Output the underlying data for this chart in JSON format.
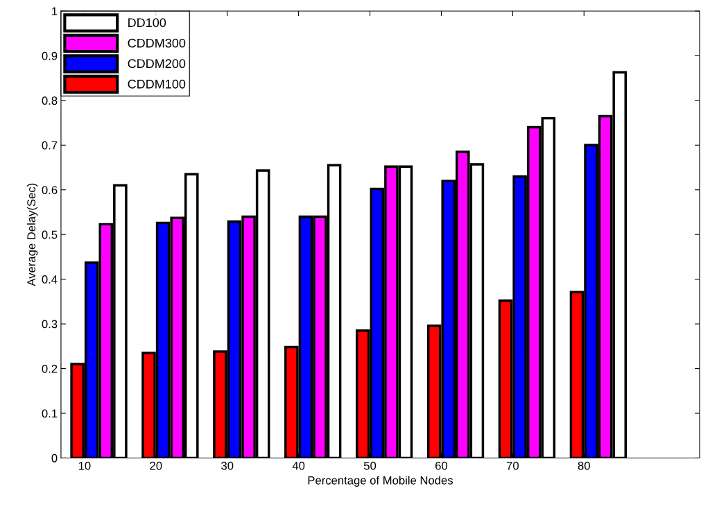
{
  "chart_data": {
    "type": "bar",
    "xlabel": "Percentage of Mobile Nodes",
    "ylabel": "Average Delay(Sec)",
    "x": [
      10,
      20,
      30,
      40,
      50,
      60,
      70,
      80
    ],
    "series": [
      {
        "name": "CDDM100",
        "color": "#ff0000",
        "values": [
          0.21,
          0.235,
          0.238,
          0.248,
          0.285,
          0.296,
          0.352,
          0.371
        ]
      },
      {
        "name": "CDDM200",
        "color": "#0000ff",
        "values": [
          0.437,
          0.526,
          0.529,
          0.54,
          0.602,
          0.62,
          0.63,
          0.7
        ]
      },
      {
        "name": "CDDM300",
        "color": "#ff00ff",
        "values": [
          0.523,
          0.537,
          0.54,
          0.54,
          0.652,
          0.685,
          0.74,
          0.765
        ]
      },
      {
        "name": "DD100",
        "color": "#ffffff",
        "values": [
          0.61,
          0.635,
          0.643,
          0.655,
          0.652,
          0.657,
          0.76,
          0.863
        ]
      }
    ],
    "xlim": [
      6.7,
      96.2
    ],
    "xticks": [
      10,
      20,
      30,
      40,
      50,
      60,
      70,
      80
    ],
    "ylim": [
      0,
      1
    ],
    "yticks": [
      0,
      0.1,
      0.2,
      0.3,
      0.4,
      0.5,
      0.6,
      0.7,
      0.8,
      0.9,
      1
    ],
    "grid": false,
    "legend": "top left"
  }
}
